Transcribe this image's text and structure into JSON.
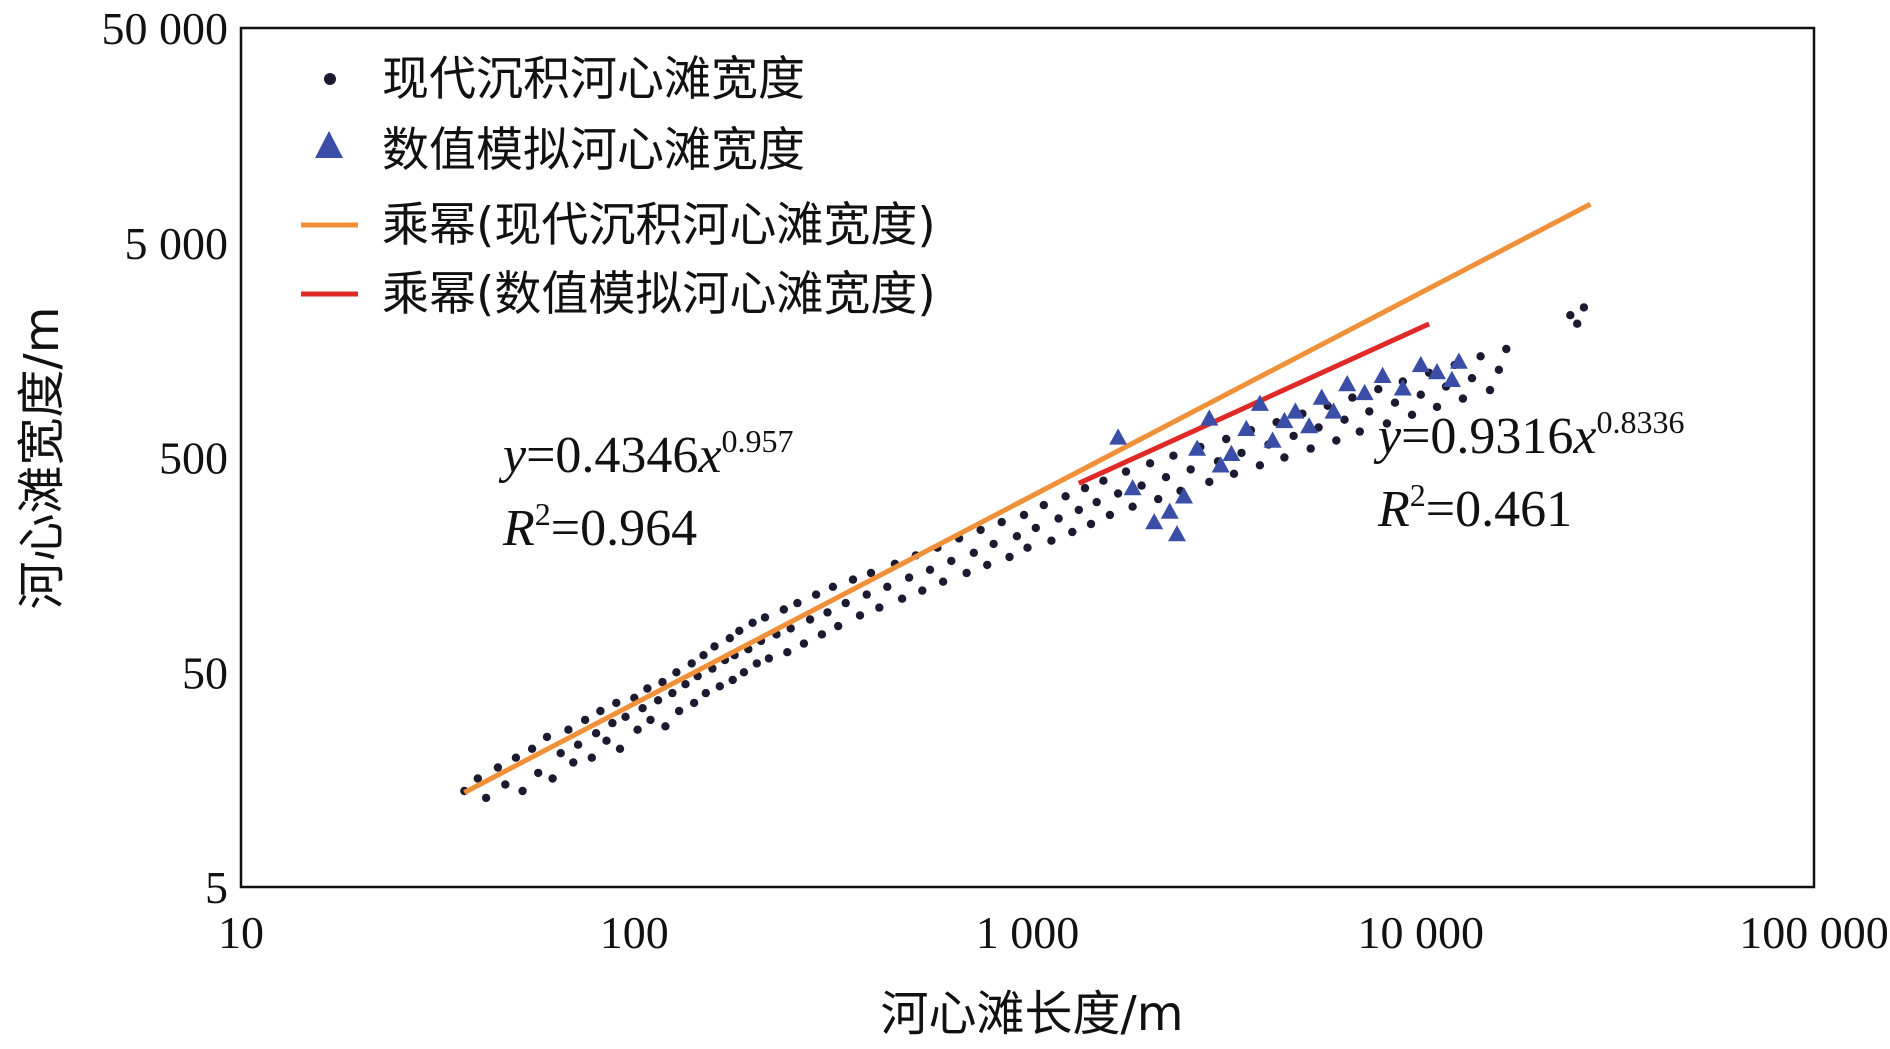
{
  "chart_data": {
    "type": "scatter",
    "xlabel": "河心滩长度/m",
    "ylabel": "河心滩宽度/m",
    "xscale": "log",
    "yscale": "log",
    "xlim": [
      10,
      100000
    ],
    "ylim": [
      5,
      50000
    ],
    "x_ticks": [
      {
        "value": 10,
        "label": "10"
      },
      {
        "value": 100,
        "label": "100"
      },
      {
        "value": 1000,
        "label": "1 000"
      },
      {
        "value": 10000,
        "label": "10 000"
      },
      {
        "value": 100000,
        "label": "100 000"
      }
    ],
    "y_ticks": [
      {
        "value": 5,
        "label": "5"
      },
      {
        "value": 50,
        "label": "50"
      },
      {
        "value": 500,
        "label": "500"
      },
      {
        "value": 5000,
        "label": "5 000"
      },
      {
        "value": 50000,
        "label": "50 000"
      }
    ],
    "legend_position": "top-left",
    "grid": false,
    "colors": {
      "modern_points": "#1c1a30",
      "sim_points": "#3a4ea8",
      "modern_fit": "#f0913a",
      "sim_fit": "#e02a28"
    },
    "legend": [
      {
        "label": "现代沉积河心滩宽度",
        "marker": "dot",
        "series": "modern"
      },
      {
        "label": "数值模拟河心滩宽度",
        "marker": "triangle",
        "series": "sim"
      },
      {
        "label": "乘幂(现代沉积河心滩宽度)",
        "marker": "line",
        "series": "modern_fit"
      },
      {
        "label": "乘幂(数值模拟河心滩宽度)",
        "marker": "line",
        "series": "sim_fit"
      }
    ],
    "series": [
      {
        "name": "现代沉积河心滩宽度",
        "marker": "dot",
        "points": [
          [
            37,
            14
          ],
          [
            40,
            16
          ],
          [
            42,
            13
          ],
          [
            45,
            18
          ],
          [
            47,
            15
          ],
          [
            50,
            20
          ],
          [
            52,
            14
          ],
          [
            55,
            22
          ],
          [
            57,
            17
          ],
          [
            60,
            25
          ],
          [
            62,
            16
          ],
          [
            65,
            21
          ],
          [
            68,
            27
          ],
          [
            70,
            19
          ],
          [
            72,
            23
          ],
          [
            75,
            30
          ],
          [
            78,
            20
          ],
          [
            80,
            26
          ],
          [
            82,
            33
          ],
          [
            85,
            24
          ],
          [
            88,
            29
          ],
          [
            90,
            36
          ],
          [
            92,
            22
          ],
          [
            95,
            31
          ],
          [
            100,
            38
          ],
          [
            102,
            27
          ],
          [
            105,
            34
          ],
          [
            108,
            42
          ],
          [
            110,
            30
          ],
          [
            115,
            37
          ],
          [
            118,
            45
          ],
          [
            120,
            28
          ],
          [
            125,
            40
          ],
          [
            128,
            50
          ],
          [
            130,
            33
          ],
          [
            135,
            44
          ],
          [
            140,
            55
          ],
          [
            142,
            36
          ],
          [
            145,
            48
          ],
          [
            150,
            60
          ],
          [
            152,
            40
          ],
          [
            158,
            52
          ],
          [
            160,
            66
          ],
          [
            165,
            43
          ],
          [
            170,
            57
          ],
          [
            175,
            72
          ],
          [
            178,
            46
          ],
          [
            180,
            60
          ],
          [
            185,
            78
          ],
          [
            190,
            50
          ],
          [
            195,
            64
          ],
          [
            200,
            85
          ],
          [
            205,
            55
          ],
          [
            210,
            70
          ],
          [
            215,
            90
          ],
          [
            220,
            58
          ],
          [
            230,
            75
          ],
          [
            240,
            98
          ],
          [
            245,
            62
          ],
          [
            250,
            80
          ],
          [
            260,
            105
          ],
          [
            270,
            68
          ],
          [
            280,
            88
          ],
          [
            290,
            115
          ],
          [
            300,
            75
          ],
          [
            310,
            95
          ],
          [
            320,
            125
          ],
          [
            330,
            82
          ],
          [
            345,
            105
          ],
          [
            360,
            135
          ],
          [
            375,
            92
          ],
          [
            390,
            115
          ],
          [
            400,
            145
          ],
          [
            420,
            100
          ],
          [
            440,
            125
          ],
          [
            460,
            160
          ],
          [
            480,
            110
          ],
          [
            500,
            138
          ],
          [
            520,
            175
          ],
          [
            540,
            120
          ],
          [
            565,
            150
          ],
          [
            590,
            190
          ],
          [
            610,
            132
          ],
          [
            640,
            165
          ],
          [
            670,
            210
          ],
          [
            700,
            145
          ],
          [
            730,
            180
          ],
          [
            760,
            230
          ],
          [
            790,
            158
          ],
          [
            820,
            198
          ],
          [
            860,
            250
          ],
          [
            900,
            172
          ],
          [
            940,
            215
          ],
          [
            980,
            270
          ],
          [
            1000,
            190
          ],
          [
            1050,
            235
          ],
          [
            1100,
            300
          ],
          [
            1150,
            205
          ],
          [
            1200,
            260
          ],
          [
            1250,
            330
          ],
          [
            1300,
            225
          ],
          [
            1350,
            285
          ],
          [
            1400,
            360
          ],
          [
            1450,
            245
          ],
          [
            1500,
            310
          ],
          [
            1560,
            390
          ],
          [
            1620,
            270
          ],
          [
            1700,
            340
          ],
          [
            1780,
            430
          ],
          [
            1850,
            295
          ],
          [
            1950,
            370
          ],
          [
            2050,
            470
          ],
          [
            2150,
            320
          ],
          [
            2250,
            405
          ],
          [
            2350,
            510
          ],
          [
            2450,
            350
          ],
          [
            2600,
            440
          ],
          [
            2750,
            560
          ],
          [
            2900,
            385
          ],
          [
            3050,
            480
          ],
          [
            3200,
            610
          ],
          [
            3350,
            420
          ],
          [
            3500,
            525
          ],
          [
            3700,
            670
          ],
          [
            3900,
            460
          ],
          [
            4100,
            575
          ],
          [
            4300,
            730
          ],
          [
            4500,
            500
          ],
          [
            4750,
            630
          ],
          [
            5000,
            800
          ],
          [
            5250,
            550
          ],
          [
            5500,
            690
          ],
          [
            5800,
            870
          ],
          [
            6100,
            600
          ],
          [
            6400,
            750
          ],
          [
            6700,
            950
          ],
          [
            7000,
            660
          ],
          [
            7400,
            820
          ],
          [
            7800,
            1040
          ],
          [
            8200,
            720
          ],
          [
            8600,
            900
          ],
          [
            9000,
            1130
          ],
          [
            9500,
            790
          ],
          [
            10000,
            980
          ],
          [
            10500,
            1240
          ],
          [
            11000,
            860
          ],
          [
            11600,
            1070
          ],
          [
            12200,
            1350
          ],
          [
            12800,
            940
          ],
          [
            13500,
            1170
          ],
          [
            14200,
            1480
          ],
          [
            15000,
            1030
          ],
          [
            15800,
            1280
          ],
          [
            16500,
            1600
          ],
          [
            24000,
            2300
          ],
          [
            25000,
            2100
          ],
          [
            26000,
            2500
          ]
        ]
      },
      {
        "name": "数值模拟河心滩宽度",
        "marker": "triangle",
        "points": [
          [
            1700,
            620
          ],
          [
            1850,
            360
          ],
          [
            2100,
            250
          ],
          [
            2300,
            280
          ],
          [
            2400,
            220
          ],
          [
            2500,
            330
          ],
          [
            2700,
            550
          ],
          [
            2900,
            760
          ],
          [
            3100,
            460
          ],
          [
            3300,
            520
          ],
          [
            3600,
            680
          ],
          [
            3900,
            890
          ],
          [
            4200,
            600
          ],
          [
            4500,
            740
          ],
          [
            4800,
            820
          ],
          [
            5200,
            700
          ],
          [
            5600,
            950
          ],
          [
            6000,
            820
          ],
          [
            6500,
            1100
          ],
          [
            7200,
            1000
          ],
          [
            8000,
            1200
          ],
          [
            9000,
            1050
          ],
          [
            10000,
            1350
          ],
          [
            11000,
            1250
          ],
          [
            12000,
            1150
          ],
          [
            12500,
            1400
          ]
        ]
      }
    ],
    "fits": [
      {
        "name": "乘幂(现代沉积河心滩宽度)",
        "equation": "y=0.4346x^0.957",
        "a": 0.4346,
        "b": 0.957,
        "r2": 0.964,
        "x_range": [
          37,
          27000
        ],
        "y_label_prefix": "y",
        "equals_coef": "=0.4346",
        "x_label": "x",
        "exponent": "0.957",
        "r_label": "R",
        "r_sup": "2",
        "r_value": "=0.964"
      },
      {
        "name": "乘幂(数值模拟河心滩宽度)",
        "equation": "y=0.9316x^0.8336",
        "a": 0.9316,
        "b": 0.8336,
        "r2": 0.461,
        "x_range": [
          1350,
          10500
        ],
        "y_label_prefix": "y",
        "equals_coef": "=0.9316",
        "x_label": "x",
        "exponent": "0.8336",
        "r_label": "R",
        "r_sup": "2",
        "r_value": "=0.461"
      }
    ]
  }
}
